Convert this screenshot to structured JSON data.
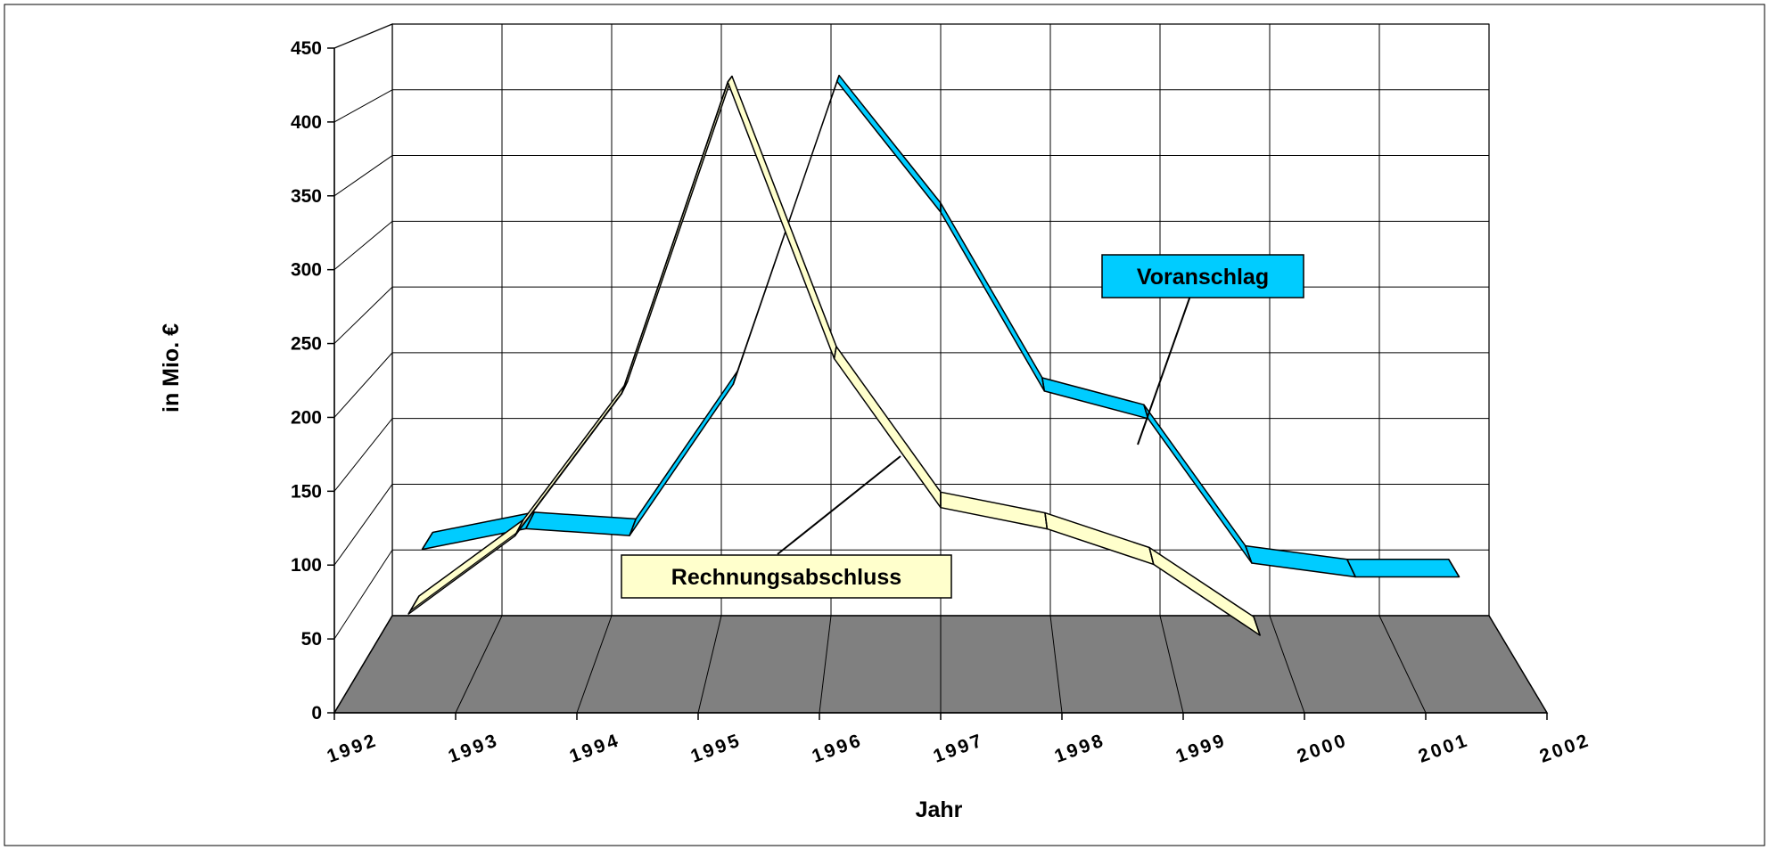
{
  "chart_data": {
    "type": "line",
    "subtype": "3d-ribbon",
    "x": [
      "1992",
      "1993",
      "1994",
      "1995",
      "1996",
      "1997",
      "1998",
      "1999",
      "2000",
      "2001",
      "2002"
    ],
    "xlabel": "Jahr",
    "ylabel": "in Mio. €",
    "ylim": [
      0,
      450
    ],
    "yticks": [
      "0",
      "50",
      "100",
      "150",
      "200",
      "250",
      "300",
      "350",
      "400",
      "450"
    ],
    "grid": true,
    "series": [
      {
        "name": "Voranschlag",
        "color": "#00CCFF",
        "values": [
          75,
          90,
          85,
          195,
          415,
          320,
          190,
          170,
          65,
          55,
          55
        ]
      },
      {
        "name": "Rechnungsabschluss",
        "color": "#FFFFCC",
        "values": [
          45,
          100,
          200,
          420,
          225,
          120,
          105,
          80,
          30,
          null,
          null
        ]
      }
    ],
    "colors": {
      "floor": "#808080",
      "dark_side": "#6E6E60",
      "line": "#000000"
    }
  }
}
